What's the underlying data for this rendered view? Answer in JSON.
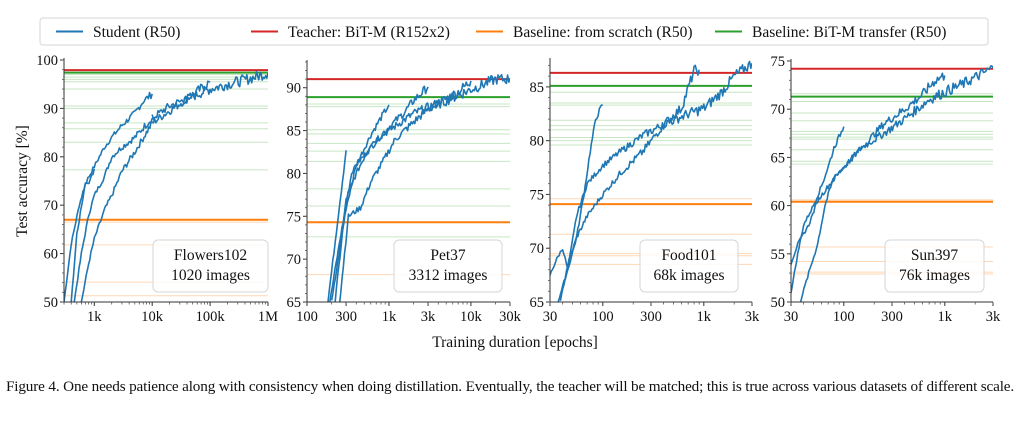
{
  "chart_data": [
    {
      "type": "line",
      "dataset": "Flowers102",
      "annotation": [
        "Flowers102",
        "1020 images"
      ],
      "xscale": "log",
      "xlim": [
        300,
        1000000
      ],
      "ylim": [
        50,
        100
      ],
      "xticks": [
        {
          "v": 1000,
          "label": "1k"
        },
        {
          "v": 10000,
          "label": "10k"
        },
        {
          "v": 100000,
          "label": "100k"
        },
        {
          "v": 1000000,
          "label": "1M"
        }
      ],
      "yticks": [
        50,
        60,
        70,
        80,
        90,
        100
      ],
      "ylabel": "Test accuracy [%]",
      "teacher": 97.9,
      "baseline_scratch": 67.0,
      "baseline_transfer": 97.4,
      "transfer_sweep": [
        97.0,
        96.5,
        96.0,
        95.5,
        94.0,
        90.5,
        90.0,
        87.0,
        85.8,
        83.0,
        77.3
      ],
      "scratch_sweep": [
        66.5,
        61.8,
        54.1,
        51.3
      ],
      "series": [
        {
          "name": "Student (R50) short",
          "x": [
            300,
            400,
            550,
            700,
            850,
            1000
          ],
          "y": [
            50,
            62,
            70,
            74.5,
            75,
            77.5
          ]
        },
        {
          "name": "Student (R50) 10k",
          "x": [
            400,
            500,
            700,
            1000,
            1500,
            2000,
            3000,
            5000,
            7000,
            10000
          ],
          "y": [
            50,
            64,
            74.5,
            78,
            82,
            84,
            86.5,
            89,
            91.5,
            93
          ]
        },
        {
          "name": "Student (R50) 10k-b",
          "x": [
            450,
            600,
            800,
            1000,
            1500,
            2000,
            3000,
            5000,
            7000,
            10000
          ],
          "y": [
            50,
            60,
            68,
            72,
            76,
            80,
            82,
            84,
            86,
            88
          ]
        },
        {
          "name": "Student (R50) 100k",
          "x": [
            600,
            800,
            1000,
            1500,
            2000,
            3000,
            5000,
            10000,
            30000,
            60000,
            100000
          ],
          "y": [
            50,
            58,
            63,
            69,
            72,
            77,
            81,
            87,
            91,
            93.5,
            95.5
          ]
        },
        {
          "name": "Student (R50) 1M",
          "x": [
            10000,
            20000,
            50000,
            100000,
            200000,
            500000,
            1000000
          ],
          "y": [
            88,
            90.5,
            92.5,
            94,
            95,
            96.2,
            97.3
          ]
        }
      ]
    },
    {
      "type": "line",
      "dataset": "Pet37",
      "annotation": [
        "Pet37",
        "3312 images"
      ],
      "xscale": "log",
      "xlim": [
        100,
        30000
      ],
      "ylim": [
        65,
        93
      ],
      "xticks": [
        {
          "v": 100,
          "label": "100"
        },
        {
          "v": 300,
          "label": "300"
        },
        {
          "v": 1000,
          "label": "1k"
        },
        {
          "v": 3000,
          "label": "3k"
        },
        {
          "v": 10000,
          "label": "10k"
        },
        {
          "v": 30000,
          "label": "30k"
        }
      ],
      "yticks": [
        65,
        70,
        75,
        80,
        85,
        90
      ],
      "teacher": 91.0,
      "baseline_scratch": 74.3,
      "baseline_transfer": 88.9,
      "transfer_sweep": [
        88.1,
        87.8,
        85.1,
        84.6,
        83.5,
        82.6,
        81.4,
        78.2,
        76.2,
        72.6
      ],
      "scratch_sweep": [
        68.2
      ],
      "series": [
        {
          "name": "Student (R50) 300",
          "x": [
            180,
            300
          ],
          "y": [
            65,
            82.7
          ]
        },
        {
          "name": "Student (R50) 1k",
          "x": [
            190,
            250,
            350,
            450,
            600,
            800,
            1000
          ],
          "y": [
            65,
            72,
            80,
            82,
            84.5,
            86.5,
            88
          ]
        },
        {
          "name": "Student (R50) 3k",
          "x": [
            200,
            300,
            400,
            600,
            900,
            1500,
            2000,
            3000
          ],
          "y": [
            65,
            76,
            81,
            83,
            85,
            87,
            88.5,
            90.1
          ]
        },
        {
          "name": "Student (R50) 10k",
          "x": [
            220,
            300,
            400,
            600,
            1000,
            2000,
            4000,
            7000,
            10000
          ],
          "y": [
            65,
            77,
            80,
            83.5,
            85,
            87,
            88.2,
            89.5,
            90.8
          ]
        },
        {
          "name": "Student (R50) 30k",
          "x": [
            250,
            320,
            450,
            600,
            800,
            1200,
            2000,
            3000,
            5000,
            10000,
            20000,
            30000
          ],
          "y": [
            65,
            75,
            76,
            79,
            81,
            84,
            86,
            87.5,
            88.5,
            89.8,
            91,
            91
          ]
        }
      ]
    },
    {
      "type": "line",
      "dataset": "Food101",
      "annotation": [
        "Food101",
        "68k images"
      ],
      "xscale": "log",
      "xlim": [
        30,
        3000
      ],
      "ylim": [
        65,
        87.5
      ],
      "xticks": [
        {
          "v": 30,
          "label": "30"
        },
        {
          "v": 100,
          "label": "100"
        },
        {
          "v": 300,
          "label": "300"
        },
        {
          "v": 1000,
          "label": "1k"
        },
        {
          "v": 3000,
          "label": "3k"
        }
      ],
      "yticks": [
        65,
        70,
        75,
        80,
        85
      ],
      "teacher": 86.3,
      "baseline_scratch": 74.1,
      "baseline_transfer": 85.1,
      "transfer_sweep": [
        84.5,
        83.5,
        83.3,
        81.9,
        81.4,
        81.0,
        80.3,
        80.0,
        79.6
      ],
      "scratch_sweep": [
        74.6,
        71.3,
        69.5,
        69.3,
        68.5
      ],
      "series": [
        {
          "name": "Student (R50) 100",
          "x": [
            36,
            45,
            55,
            65,
            75,
            85,
            95,
            100
          ],
          "y": [
            65,
            68,
            71,
            75,
            79,
            82,
            83,
            83.3
          ]
        },
        {
          "name": "Student (R50) 1k",
          "x": [
            30,
            35,
            40,
            45,
            55,
            70,
            100,
            150,
            250,
            400,
            600,
            800,
            900
          ],
          "y": [
            67.5,
            69,
            70,
            68,
            73,
            76,
            77.7,
            79,
            80.5,
            81.5,
            83,
            86.5,
            86.6
          ]
        },
        {
          "name": "Student (R50) 3k",
          "x": [
            38,
            45,
            55,
            70,
            100,
            150,
            250,
            400,
            700,
            1000,
            1500,
            2000,
            3000
          ],
          "y": [
            65,
            68.5,
            71,
            73,
            75,
            77,
            79,
            81.5,
            82.5,
            83,
            84.5,
            86,
            87.2
          ]
        }
      ]
    },
    {
      "type": "line",
      "dataset": "Sun397",
      "annotation": [
        "Sun397",
        "76k images"
      ],
      "xscale": "log",
      "xlim": [
        30,
        3000
      ],
      "ylim": [
        50,
        75
      ],
      "xticks": [
        {
          "v": 30,
          "label": "30"
        },
        {
          "v": 100,
          "label": "100"
        },
        {
          "v": 300,
          "label": "300"
        },
        {
          "v": 1000,
          "label": "1k"
        },
        {
          "v": 3000,
          "label": "3k"
        }
      ],
      "yticks": [
        50,
        55,
        60,
        65,
        70,
        75
      ],
      "teacher": 74.2,
      "baseline_scratch": 60.4,
      "baseline_transfer": 71.3,
      "transfer_sweep": [
        71.6,
        70.8,
        69.6,
        68.8,
        67.7,
        67.4,
        67.1,
        66.9,
        65.8,
        64.6,
        64.3
      ],
      "scratch_sweep": [
        60.6,
        55.7,
        54.2,
        53.1,
        52.9
      ],
      "series": [
        {
          "name": "Student (R50) 100",
          "x": [
            30,
            35,
            40,
            50,
            60,
            70,
            80,
            100
          ],
          "y": [
            51,
            55,
            58,
            60,
            62,
            64,
            66,
            68.2
          ]
        },
        {
          "name": "Student (R50) 1k",
          "x": [
            30,
            35,
            45,
            55,
            70,
            100,
            150,
            250,
            400,
            600,
            800,
            1000
          ],
          "y": [
            54,
            56,
            58,
            60.5,
            62,
            64,
            66,
            68.5,
            70,
            71.5,
            73,
            73.5
          ]
        },
        {
          "name": "Student (R50) 3k",
          "x": [
            37,
            45,
            55,
            65,
            80,
            100,
            150,
            250,
            400,
            700,
            1000,
            1500,
            2000,
            3000
          ],
          "y": [
            50,
            53,
            56,
            60,
            63,
            64,
            66,
            67.5,
            69,
            71,
            71.8,
            72.6,
            73.3,
            74.3
          ]
        }
      ]
    }
  ],
  "legend": {
    "items": [
      {
        "label": "Student (R50)",
        "color": "#1f77b4"
      },
      {
        "label": "Teacher: BiT-M (R152x2)",
        "color": "#d62728"
      },
      {
        "label": "Baseline: from scratch (R50)",
        "color": "#ff7f0e"
      },
      {
        "label": "Baseline: BiT-M transfer (R50)",
        "color": "#2ca02c"
      }
    ]
  },
  "colors": {
    "student": "#1f77b4",
    "teacher": "#d62728",
    "scratch": "#ff7f0e",
    "transfer": "#2ca02c",
    "scratch_light": "#ffd7b5",
    "transfer_light": "#c8e6c4"
  },
  "xlabel": "Training duration [epochs]",
  "caption": "Figure 4. One needs patience along with consistency when doing distillation. Eventually, the teacher will be matched; this is true across various datasets of different scale."
}
